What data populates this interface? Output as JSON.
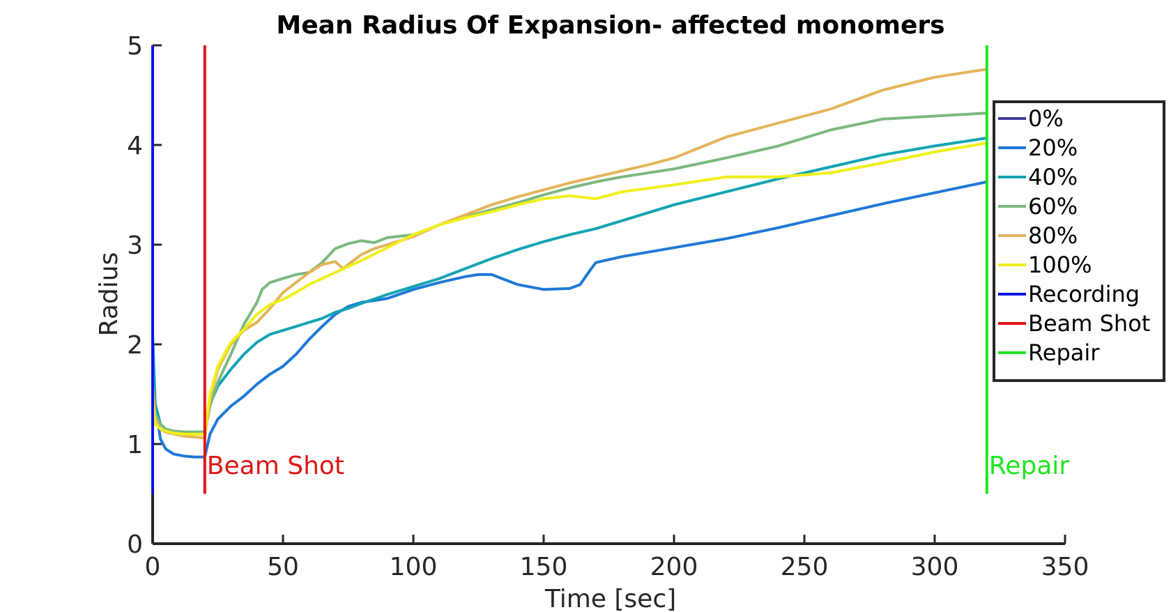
{
  "chart_data": {
    "type": "line",
    "title": "Mean Radius Of Expansion- affected monomers",
    "xlabel": "Time [sec]",
    "ylabel": "Radius",
    "xlim": [
      0,
      350
    ],
    "ylim": [
      0,
      5
    ],
    "xticks": [
      0,
      50,
      100,
      150,
      200,
      250,
      300,
      350
    ],
    "yticks": [
      0,
      1,
      2,
      3,
      4,
      5
    ],
    "legend_position": "right",
    "grid": false,
    "series": [
      {
        "name": "0%",
        "color": "#3f3d99",
        "x": [],
        "y": []
      },
      {
        "name": "20%",
        "color": "#1f78d6",
        "x": [
          0,
          1,
          3,
          5,
          8,
          12,
          16,
          20,
          22,
          25,
          30,
          35,
          40,
          45,
          50,
          55,
          60,
          65,
          70,
          75,
          80,
          85,
          90,
          100,
          110,
          120,
          125,
          130,
          140,
          150,
          160,
          164,
          168,
          170,
          180,
          200,
          220,
          240,
          260,
          280,
          300,
          320
        ],
        "y": [
          2.1,
          1.4,
          1.05,
          0.95,
          0.9,
          0.88,
          0.87,
          0.87,
          1.1,
          1.25,
          1.38,
          1.48,
          1.6,
          1.7,
          1.78,
          1.9,
          2.05,
          2.18,
          2.3,
          2.38,
          2.42,
          2.44,
          2.46,
          2.55,
          2.62,
          2.68,
          2.7,
          2.7,
          2.6,
          2.55,
          2.56,
          2.6,
          2.75,
          2.82,
          2.88,
          2.97,
          3.06,
          3.17,
          3.29,
          3.41,
          3.52,
          3.63
        ]
      },
      {
        "name": "40%",
        "color": "#12a3b3",
        "x": [
          0,
          1,
          3,
          5,
          8,
          12,
          16,
          20,
          22,
          25,
          30,
          35,
          40,
          45,
          50,
          55,
          60,
          65,
          70,
          75,
          80,
          90,
          100,
          110,
          120,
          130,
          140,
          150,
          160,
          170,
          180,
          200,
          220,
          240,
          260,
          280,
          300,
          320
        ],
        "y": [
          1.95,
          1.4,
          1.2,
          1.15,
          1.13,
          1.12,
          1.12,
          1.12,
          1.4,
          1.58,
          1.75,
          1.9,
          2.02,
          2.1,
          2.14,
          2.18,
          2.22,
          2.26,
          2.32,
          2.36,
          2.41,
          2.5,
          2.58,
          2.66,
          2.76,
          2.86,
          2.95,
          3.03,
          3.1,
          3.16,
          3.24,
          3.4,
          3.53,
          3.66,
          3.78,
          3.9,
          3.99,
          4.07
        ]
      },
      {
        "name": "60%",
        "color": "#7ab87e",
        "x": [
          0,
          1,
          3,
          5,
          8,
          12,
          16,
          20,
          22,
          25,
          30,
          35,
          40,
          42,
          45,
          50,
          55,
          60,
          65,
          70,
          75,
          80,
          85,
          90,
          100,
          110,
          120,
          130,
          140,
          150,
          160,
          170,
          180,
          200,
          220,
          240,
          260,
          280,
          300,
          320
        ],
        "y": [
          1.6,
          1.3,
          1.2,
          1.15,
          1.13,
          1.12,
          1.12,
          1.12,
          1.38,
          1.62,
          1.9,
          2.2,
          2.42,
          2.55,
          2.62,
          2.66,
          2.7,
          2.72,
          2.82,
          2.96,
          3.01,
          3.04,
          3.02,
          3.07,
          3.1,
          3.2,
          3.28,
          3.35,
          3.42,
          3.5,
          3.57,
          3.63,
          3.68,
          3.76,
          3.87,
          3.99,
          4.15,
          4.26,
          4.29,
          4.32
        ]
      },
      {
        "name": "80%",
        "color": "#e3b45a",
        "x": [
          0,
          1,
          3,
          5,
          8,
          12,
          16,
          20,
          22,
          25,
          30,
          35,
          40,
          45,
          50,
          55,
          60,
          65,
          70,
          73,
          77,
          80,
          85,
          90,
          100,
          110,
          120,
          130,
          140,
          150,
          160,
          170,
          180,
          190,
          200,
          220,
          240,
          260,
          280,
          300,
          320
        ],
        "y": [
          1.6,
          1.25,
          1.15,
          1.12,
          1.1,
          1.08,
          1.07,
          1.06,
          1.45,
          1.75,
          2.0,
          2.14,
          2.22,
          2.36,
          2.52,
          2.62,
          2.72,
          2.8,
          2.83,
          2.76,
          2.84,
          2.9,
          2.96,
          3.0,
          3.08,
          3.2,
          3.3,
          3.4,
          3.48,
          3.55,
          3.62,
          3.68,
          3.74,
          3.8,
          3.87,
          4.08,
          4.22,
          4.36,
          4.55,
          4.68,
          4.76
        ]
      },
      {
        "name": "100%",
        "color": "#f0f019",
        "x": [
          0,
          1,
          3,
          5,
          8,
          12,
          16,
          20,
          22,
          25,
          30,
          35,
          40,
          45,
          50,
          55,
          60,
          70,
          80,
          90,
          100,
          110,
          120,
          130,
          140,
          150,
          160,
          170,
          180,
          200,
          220,
          240,
          260,
          280,
          300,
          320
        ],
        "y": [
          1.45,
          1.2,
          1.15,
          1.13,
          1.11,
          1.1,
          1.1,
          1.1,
          1.5,
          1.78,
          2.02,
          2.15,
          2.3,
          2.4,
          2.45,
          2.52,
          2.6,
          2.72,
          2.84,
          2.97,
          3.1,
          3.2,
          3.27,
          3.33,
          3.4,
          3.46,
          3.49,
          3.46,
          3.53,
          3.6,
          3.68,
          3.68,
          3.72,
          3.82,
          3.93,
          4.02
        ]
      }
    ],
    "vertical_lines": [
      {
        "name": "Recording",
        "x": 0,
        "y_range": [
          0.5,
          5
        ],
        "color": "#0a14e6",
        "label": ""
      },
      {
        "name": "Beam Shot",
        "x": 20,
        "y_range": [
          0.5,
          5
        ],
        "color": "#e01414",
        "label": "Beam Shot"
      },
      {
        "name": "Repair",
        "x": 320,
        "y_range": [
          0.5,
          5
        ],
        "color": "#1ee61e",
        "label": "Repair"
      }
    ]
  }
}
